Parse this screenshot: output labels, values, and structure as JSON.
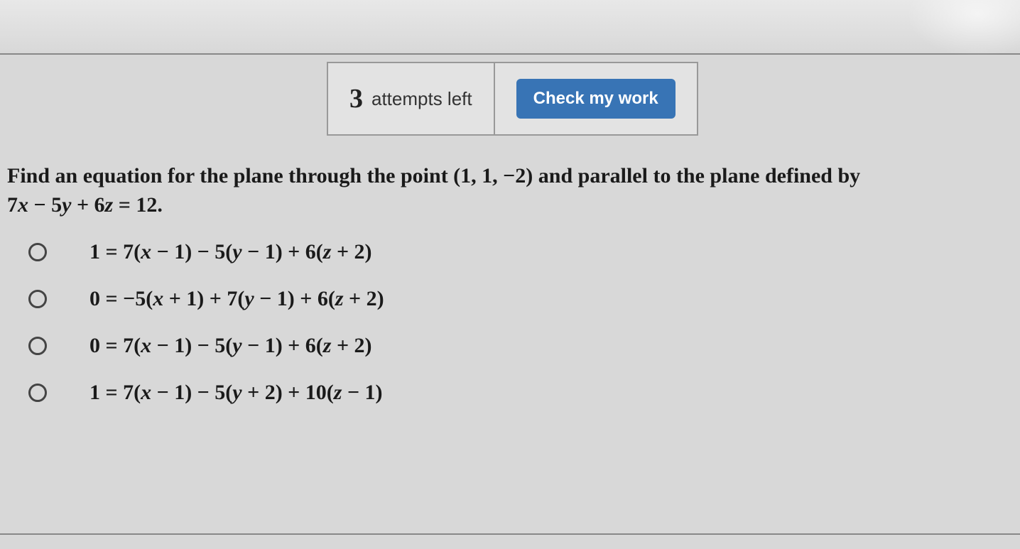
{
  "colors": {
    "background": "#d8d8d8",
    "border": "#888888",
    "box_bg": "#e3e3e3",
    "box_border": "#999999",
    "button_bg": "#3874b5",
    "button_text": "#ffffff",
    "text": "#1a1a1a",
    "radio_border": "#444444"
  },
  "typography": {
    "question_fontsize": 30,
    "attempts_number_fontsize": 38,
    "attempts_text_fontsize": 26,
    "button_fontsize": 24,
    "option_fontsize": 30,
    "font_family": "Times New Roman"
  },
  "controls": {
    "attempts_number": "3",
    "attempts_label": "attempts left",
    "check_button_label": "Check my work"
  },
  "question": {
    "prompt_part1": "Find an equation for the plane through the point (1, 1, −2) and parallel to the plane defined by",
    "prompt_part2_html": "7<i>x</i> − 5<i>y</i> + 6<i>z</i> = 12."
  },
  "options": [
    {
      "html": "1 = 7(<i>x</i> − 1) − 5(<i>y</i> − 1) + 6(<i>z</i> + 2)"
    },
    {
      "html": "0 = −5(<i>x</i> + 1) + 7(<i>y</i> − 1) + 6(<i>z</i> + 2)"
    },
    {
      "html": "0 = 7(<i>x</i> − 1) − 5(<i>y</i> − 1) + 6(<i>z</i> + 2)"
    },
    {
      "html": "1 = 7(<i>x</i> − 1) − 5(<i>y</i> + 2) + 10(<i>z</i> − 1)"
    }
  ]
}
